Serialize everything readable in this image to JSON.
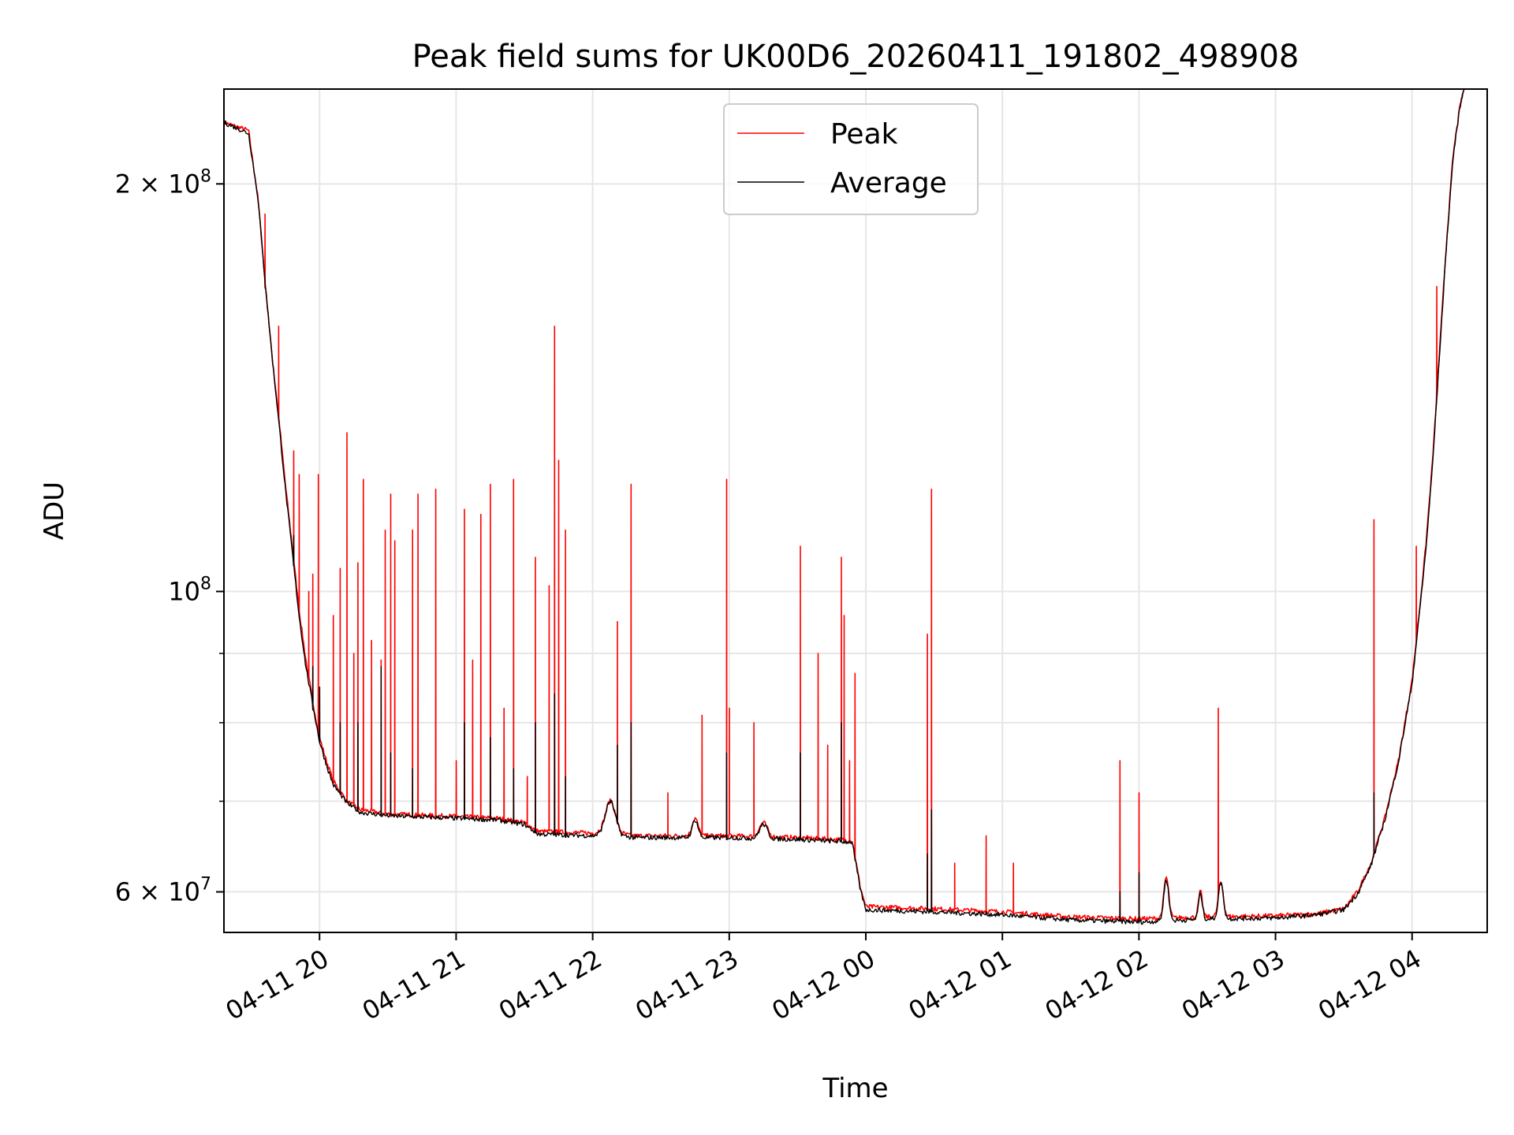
{
  "chart_data": {
    "type": "line",
    "title": "Peak field sums for UK00D6_20260411_191802_498908",
    "xlabel": "Time",
    "ylabel": "ADU",
    "yscale": "log",
    "ylim": [
      56000000,
      235000000
    ],
    "xlim_hours": [
      19.3,
      28.55
    ],
    "grid": true,
    "legend_position": "top-center",
    "colors": {
      "peak": "#ff0000",
      "average": "#000000",
      "grid": "#e6e6e6"
    },
    "x_ticks": [
      {
        "hour": 20,
        "label": "04-11 20"
      },
      {
        "hour": 21,
        "label": "04-11 21"
      },
      {
        "hour": 22,
        "label": "04-11 22"
      },
      {
        "hour": 23,
        "label": "04-11 23"
      },
      {
        "hour": 24,
        "label": "04-12 00"
      },
      {
        "hour": 25,
        "label": "04-12 01"
      },
      {
        "hour": 26,
        "label": "04-12 02"
      },
      {
        "hour": 27,
        "label": "04-12 03"
      },
      {
        "hour": 28,
        "label": "04-12 04"
      }
    ],
    "y_ticks": [
      {
        "value": 60000000,
        "label_base": "6 × 10",
        "label_exp": "7"
      },
      {
        "value": 100000000,
        "label_base": "10",
        "label_exp": "8"
      },
      {
        "value": 200000000,
        "label_base": "2 × 10",
        "label_exp": "8"
      }
    ],
    "y_minor_gridlines": [
      70000000,
      80000000,
      90000000
    ],
    "series": [
      {
        "name": "Peak",
        "key": "peak",
        "baseline": [
          [
            19.3,
            222000000
          ],
          [
            19.48,
            219000000
          ],
          [
            19.55,
            195000000
          ],
          [
            19.6,
            170000000
          ],
          [
            19.65,
            150000000
          ],
          [
            19.7,
            135000000
          ],
          [
            19.75,
            120000000
          ],
          [
            19.8,
            108000000
          ],
          [
            19.85,
            97000000
          ],
          [
            19.9,
            89000000
          ],
          [
            19.95,
            83000000
          ],
          [
            20.0,
            78000000
          ],
          [
            20.05,
            75000000
          ],
          [
            20.1,
            72500000
          ],
          [
            20.2,
            70000000
          ],
          [
            20.3,
            69000000
          ],
          [
            20.5,
            68500000
          ],
          [
            21.0,
            68200000
          ],
          [
            21.3,
            68000000
          ],
          [
            21.5,
            67500000
          ],
          [
            21.6,
            66500000
          ],
          [
            22.0,
            66300000
          ],
          [
            22.1,
            66500000
          ],
          [
            22.3,
            66000000
          ],
          [
            23.0,
            66000000
          ],
          [
            23.5,
            65800000
          ],
          [
            23.9,
            65500000
          ],
          [
            23.96,
            60500000
          ],
          [
            24.0,
            58500000
          ],
          [
            24.5,
            58300000
          ],
          [
            25.0,
            58000000
          ],
          [
            25.5,
            57500000
          ],
          [
            26.0,
            57300000
          ],
          [
            26.5,
            57500000
          ],
          [
            27.0,
            57600000
          ],
          [
            27.3,
            57800000
          ],
          [
            27.5,
            58300000
          ],
          [
            27.6,
            60000000
          ],
          [
            27.7,
            63000000
          ],
          [
            27.8,
            68000000
          ],
          [
            27.9,
            75000000
          ],
          [
            28.0,
            86000000
          ],
          [
            28.05,
            96000000
          ],
          [
            28.1,
            108000000
          ],
          [
            28.15,
            125000000
          ],
          [
            28.2,
            150000000
          ],
          [
            28.25,
            180000000
          ],
          [
            28.3,
            210000000
          ],
          [
            28.35,
            228000000
          ],
          [
            28.38,
            235000000
          ]
        ],
        "bumps": [
          {
            "hour": 22.13,
            "value": 70000000,
            "width": 0.05
          },
          {
            "hour": 22.75,
            "value": 68000000,
            "width": 0.03
          },
          {
            "hour": 23.25,
            "value": 67500000,
            "width": 0.04
          },
          {
            "hour": 26.2,
            "value": 61500000,
            "width": 0.025
          },
          {
            "hour": 26.45,
            "value": 60000000,
            "width": 0.02
          },
          {
            "hour": 26.6,
            "value": 61000000,
            "width": 0.025
          }
        ],
        "spikes": [
          [
            19.6,
            190000000
          ],
          [
            19.7,
            157000000
          ],
          [
            19.81,
            127000000
          ],
          [
            19.85,
            122000000
          ],
          [
            19.92,
            100000000
          ],
          [
            19.95,
            103000000
          ],
          [
            19.99,
            122000000
          ],
          [
            20.1,
            96000000
          ],
          [
            20.15,
            104000000
          ],
          [
            20.2,
            131000000
          ],
          [
            20.25,
            90000000
          ],
          [
            20.28,
            105000000
          ],
          [
            20.32,
            121000000
          ],
          [
            20.38,
            92000000
          ],
          [
            20.45,
            89000000
          ],
          [
            20.48,
            111000000
          ],
          [
            20.52,
            118000000
          ],
          [
            20.55,
            109000000
          ],
          [
            20.68,
            111000000
          ],
          [
            20.72,
            118000000
          ],
          [
            20.85,
            119000000
          ],
          [
            21.0,
            75000000
          ],
          [
            21.06,
            115000000
          ],
          [
            21.12,
            89000000
          ],
          [
            21.18,
            114000000
          ],
          [
            21.25,
            120000000
          ],
          [
            21.35,
            82000000
          ],
          [
            21.42,
            121000000
          ],
          [
            21.52,
            73000000
          ],
          [
            21.58,
            106000000
          ],
          [
            21.68,
            101000000
          ],
          [
            21.72,
            157000000
          ],
          [
            21.75,
            125000000
          ],
          [
            21.8,
            111000000
          ],
          [
            22.18,
            95000000
          ],
          [
            22.28,
            120000000
          ],
          [
            22.55,
            71000000
          ],
          [
            22.8,
            81000000
          ],
          [
            22.98,
            121000000
          ],
          [
            23.0,
            82000000
          ],
          [
            23.18,
            80000000
          ],
          [
            23.52,
            108000000
          ],
          [
            23.65,
            90000000
          ],
          [
            23.72,
            77000000
          ],
          [
            23.82,
            106000000
          ],
          [
            23.84,
            96000000
          ],
          [
            23.88,
            75000000
          ],
          [
            23.92,
            87000000
          ],
          [
            24.45,
            93000000
          ],
          [
            24.48,
            119000000
          ],
          [
            24.65,
            63000000
          ],
          [
            24.88,
            66000000
          ],
          [
            25.08,
            63000000
          ],
          [
            25.86,
            75000000
          ],
          [
            26.0,
            71000000
          ],
          [
            26.58,
            82000000
          ],
          [
            27.72,
            113000000
          ],
          [
            28.03,
            108000000
          ],
          [
            28.18,
            168000000
          ]
        ]
      },
      {
        "name": "Average",
        "key": "average",
        "baseline": [
          [
            19.3,
            222000000
          ],
          [
            19.48,
            218000000
          ],
          [
            19.55,
            195000000
          ],
          [
            19.6,
            170000000
          ],
          [
            19.65,
            150000000
          ],
          [
            19.7,
            134000000
          ],
          [
            19.75,
            119000000
          ],
          [
            19.8,
            107000000
          ],
          [
            19.85,
            96000000
          ],
          [
            19.9,
            88000000
          ],
          [
            19.95,
            82500000
          ],
          [
            20.0,
            77500000
          ],
          [
            20.05,
            74500000
          ],
          [
            20.1,
            72000000
          ],
          [
            20.2,
            69800000
          ],
          [
            20.3,
            68700000
          ],
          [
            20.5,
            68300000
          ],
          [
            21.0,
            68000000
          ],
          [
            21.3,
            67800000
          ],
          [
            21.5,
            67300000
          ],
          [
            21.6,
            66200000
          ],
          [
            22.0,
            66000000
          ],
          [
            22.1,
            66200000
          ],
          [
            22.3,
            65800000
          ],
          [
            23.0,
            65800000
          ],
          [
            23.5,
            65600000
          ],
          [
            23.9,
            65300000
          ],
          [
            23.96,
            60200000
          ],
          [
            24.0,
            58200000
          ],
          [
            24.5,
            58000000
          ],
          [
            25.0,
            57700000
          ],
          [
            25.5,
            57200000
          ],
          [
            26.0,
            57000000
          ],
          [
            26.5,
            57300000
          ],
          [
            27.0,
            57400000
          ],
          [
            27.3,
            57700000
          ],
          [
            27.5,
            58200000
          ],
          [
            27.6,
            59800000
          ],
          [
            27.7,
            62800000
          ],
          [
            27.8,
            67800000
          ],
          [
            27.9,
            74800000
          ],
          [
            28.0,
            85500000
          ],
          [
            28.05,
            95500000
          ],
          [
            28.1,
            107000000
          ],
          [
            28.15,
            124000000
          ],
          [
            28.2,
            149000000
          ],
          [
            28.25,
            179000000
          ],
          [
            28.3,
            209000000
          ],
          [
            28.35,
            228000000
          ],
          [
            28.38,
            235000000
          ]
        ],
        "bumps": [
          {
            "hour": 22.13,
            "value": 70000000,
            "width": 0.05
          },
          {
            "hour": 22.75,
            "value": 67800000,
            "width": 0.03
          },
          {
            "hour": 23.25,
            "value": 67300000,
            "width": 0.04
          },
          {
            "hour": 26.2,
            "value": 61300000,
            "width": 0.025
          },
          {
            "hour": 26.45,
            "value": 59800000,
            "width": 0.02
          },
          {
            "hour": 26.6,
            "value": 61000000,
            "width": 0.025
          }
        ],
        "spikes": [
          [
            19.81,
            110000000
          ],
          [
            19.95,
            88000000
          ],
          [
            20.0,
            85000000
          ],
          [
            20.15,
            80000000
          ],
          [
            20.28,
            80000000
          ],
          [
            20.45,
            88000000
          ],
          [
            20.52,
            76000000
          ],
          [
            20.68,
            74000000
          ],
          [
            21.06,
            80000000
          ],
          [
            21.25,
            78000000
          ],
          [
            21.42,
            74000000
          ],
          [
            21.58,
            80000000
          ],
          [
            21.72,
            84000000
          ],
          [
            21.8,
            73000000
          ],
          [
            22.18,
            77000000
          ],
          [
            22.28,
            80000000
          ],
          [
            22.98,
            76000000
          ],
          [
            23.52,
            76000000
          ],
          [
            23.82,
            80000000
          ],
          [
            24.48,
            69000000
          ],
          [
            24.45,
            64000000
          ],
          [
            25.86,
            60000000
          ],
          [
            26.0,
            62000000
          ],
          [
            27.72,
            71000000
          ]
        ]
      }
    ]
  }
}
